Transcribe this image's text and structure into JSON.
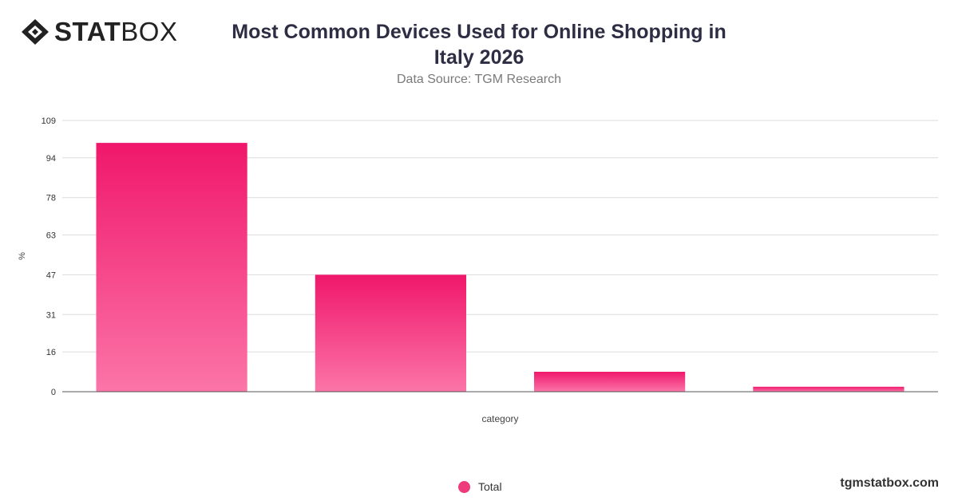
{
  "header": {
    "logo_bold": "STAT",
    "logo_light": "BOX",
    "title_line1": "Most Common Devices Used for Online Shopping in",
    "title_line2": "Italy 2026",
    "subtitle": "Data Source: TGM Research"
  },
  "footer": {
    "site": "tgmstatbox.com"
  },
  "chart_data": {
    "type": "bar",
    "title": "Most Common Devices Used for Online Shopping in Italy 2026",
    "subtitle": "Data Source: TGM Research",
    "xlabel": "category",
    "ylabel": "%",
    "ylim": [
      0,
      109
    ],
    "yticks": [
      0,
      16,
      31,
      47,
      63,
      78,
      94,
      109
    ],
    "categories": [
      "",
      "",
      "",
      ""
    ],
    "series": [
      {
        "name": "Total",
        "values": [
          100,
          47,
          8,
          2
        ]
      }
    ],
    "legend_position": "bottom",
    "grid": true,
    "colors": {
      "bar_top": "#f0176b",
      "bar_bottom": "#fb75a8",
      "legend": "#ee3b7c"
    }
  }
}
